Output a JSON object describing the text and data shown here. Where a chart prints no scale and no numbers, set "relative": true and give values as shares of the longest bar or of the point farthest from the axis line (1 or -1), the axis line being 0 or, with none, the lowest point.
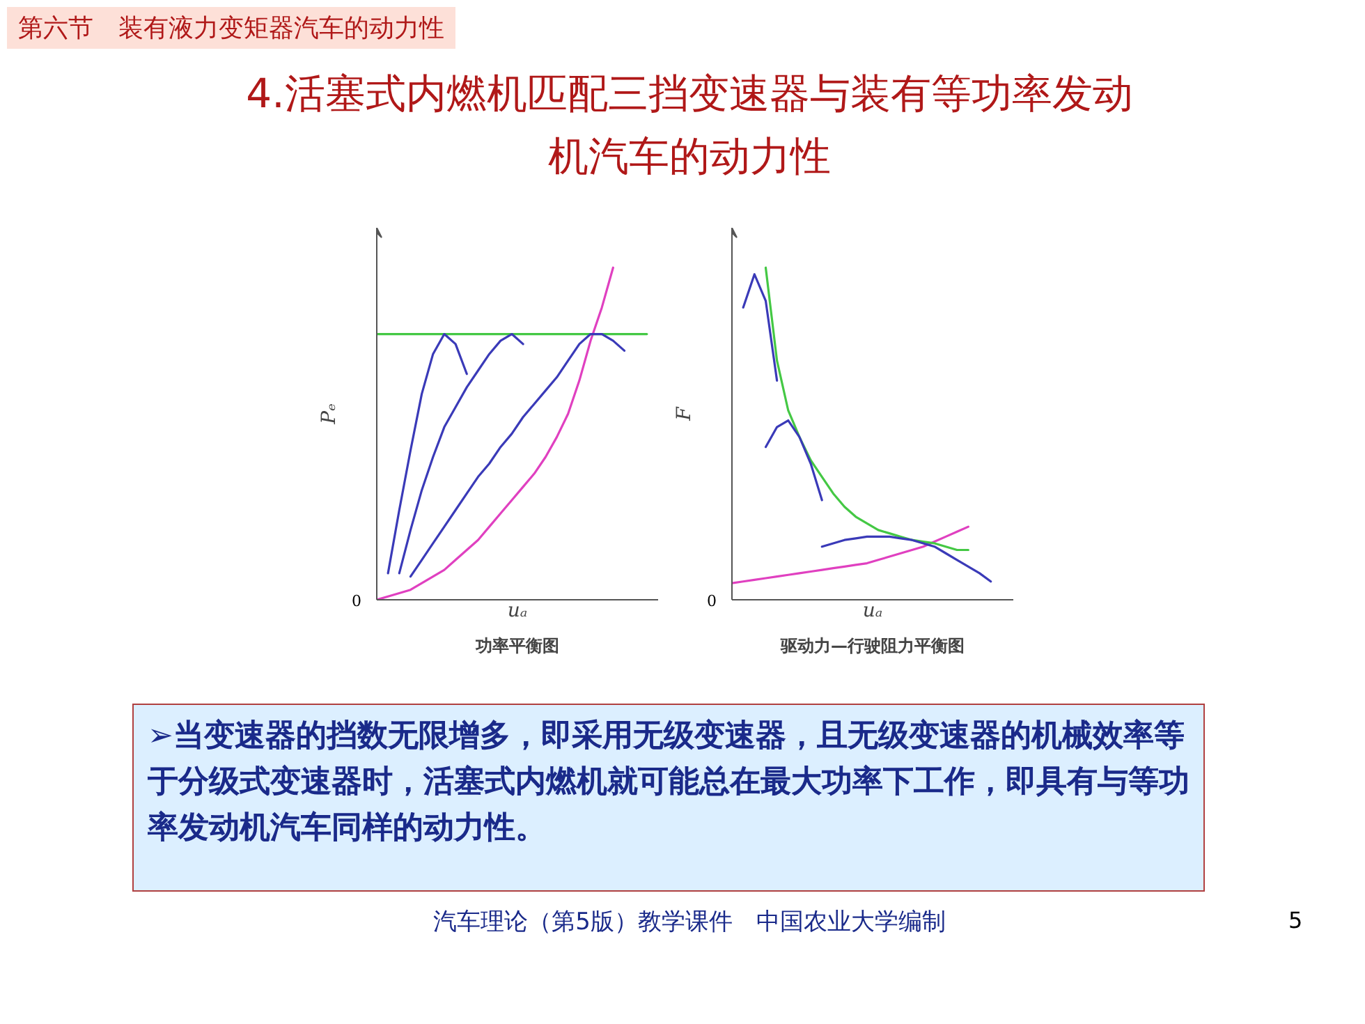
{
  "chart_data": [
    {
      "type": "other",
      "title": "4.活塞式内燃机匹配三挡变速器与装有等功率发动机汽车的动力性",
      "annotations": [
        "第六节　装有液力变矩器汽车的动力性",
        "➢当变速器的挡数无限增多，即采用无级变速器，且无级变速器的机械效率等于分级式变速器时，活塞式内燃机就可能总在最大功率下工作，即具有与等功率发动机汽车同样的动力性。",
        "5",
        "汽车理论（第5版）教学课件　中国农业大学编制"
      ]
    },
    {
      "type": "line",
      "relative": true,
      "xlabel": "uₐ",
      "ylabel": "Pₑ",
      "annotations": [
        "0",
        "功率平衡图"
      ],
      "categories": [
        null,
        null,
        null,
        null,
        null,
        null,
        null,
        null,
        null,
        null,
        null,
        null,
        null,
        null,
        null,
        null,
        null,
        null,
        null,
        null,
        null,
        null,
        null,
        null,
        null
      ],
      "series": [
        {
          "color": "#e040c0",
          "values": [
            0,
            0.01,
            0.02,
            0.03,
            0.05,
            0.07,
            0.09,
            0.12,
            0.15,
            0.18,
            0.22,
            0.26,
            0.3,
            0.34,
            0.38,
            0.43,
            0.49,
            0.56,
            0.66,
            0.78,
            0.88,
            1.0,
            null,
            null,
            null
          ]
        },
        {
          "color": "#44c844",
          "values": [
            0.8,
            0.8,
            0.8,
            0.8,
            0.8,
            0.8,
            0.8,
            0.8,
            0.8,
            0.8,
            0.8,
            0.8,
            0.8,
            0.8,
            0.8,
            0.8,
            0.8,
            0.8,
            0.8,
            0.8,
            0.8,
            0.8,
            0.8,
            0.8,
            0.8
          ]
        },
        {
          "color": "#3a3ab8",
          "values": [
            null,
            0.08,
            0.27,
            0.45,
            0.62,
            0.74,
            0.8,
            0.77,
            0.68,
            null,
            null,
            null,
            null,
            null,
            null,
            null,
            null,
            null,
            null,
            null,
            null,
            null,
            null,
            null,
            null
          ]
        },
        {
          "color": "#3a3ab8",
          "values": [
            null,
            null,
            0.08,
            0.21,
            0.33,
            0.43,
            0.52,
            0.58,
            0.64,
            0.69,
            0.74,
            0.78,
            0.8,
            0.77,
            null,
            null,
            null,
            null,
            null,
            null,
            null,
            null,
            null,
            null,
            null
          ]
        },
        {
          "color": "#3a3ab8",
          "values": [
            null,
            null,
            null,
            0.07,
            0.12,
            0.17,
            0.22,
            0.27,
            0.32,
            0.37,
            0.41,
            0.46,
            0.5,
            0.55,
            0.59,
            0.63,
            0.67,
            0.72,
            0.77,
            0.8,
            0.8,
            0.78,
            0.75,
            null,
            null
          ]
        }
      ]
    },
    {
      "type": "line",
      "relative": true,
      "xlabel": "uₐ",
      "ylabel": "F",
      "annotations": [
        "0",
        "驱动力—行驶阻力平衡图"
      ],
      "categories": [
        null,
        null,
        null,
        null,
        null,
        null,
        null,
        null,
        null,
        null,
        null,
        null,
        null,
        null,
        null,
        null,
        null,
        null,
        null,
        null,
        null,
        null,
        null,
        null,
        null
      ],
      "series": [
        {
          "color": "#e040c0",
          "values": [
            0.05,
            0.055,
            0.06,
            0.065,
            0.07,
            0.075,
            0.08,
            0.085,
            0.09,
            0.095,
            0.1,
            0.105,
            0.11,
            0.12,
            0.13,
            0.14,
            0.15,
            0.16,
            0.175,
            0.19,
            0.205,
            0.22,
            null,
            null,
            null
          ]
        },
        {
          "color": "#44c844",
          "values": [
            null,
            null,
            null,
            1.0,
            0.72,
            0.57,
            0.49,
            0.42,
            0.37,
            0.32,
            0.28,
            0.25,
            0.23,
            0.21,
            0.2,
            0.19,
            0.18,
            0.175,
            0.17,
            0.16,
            0.15,
            0.15,
            null,
            null,
            null
          ]
        },
        {
          "color": "#3a3ab8",
          "values": [
            null,
            0.88,
            0.98,
            0.9,
            0.66,
            null,
            null,
            null,
            null,
            null,
            null,
            null,
            null,
            null,
            null,
            null,
            null,
            null,
            null,
            null,
            null,
            null,
            null,
            null,
            null
          ]
        },
        {
          "color": "#3a3ab8",
          "values": [
            null,
            null,
            null,
            0.46,
            0.52,
            0.54,
            0.49,
            0.41,
            0.3,
            null,
            null,
            null,
            null,
            null,
            null,
            null,
            null,
            null,
            null,
            null,
            null,
            null,
            null,
            null,
            null
          ]
        },
        {
          "color": "#3a3ab8",
          "values": [
            null,
            null,
            null,
            null,
            null,
            null,
            null,
            null,
            0.16,
            0.17,
            0.18,
            0.185,
            0.19,
            0.19,
            0.19,
            0.185,
            0.18,
            0.17,
            0.16,
            0.14,
            0.12,
            0.1,
            0.08,
            0.055,
            null
          ]
        }
      ]
    }
  ]
}
